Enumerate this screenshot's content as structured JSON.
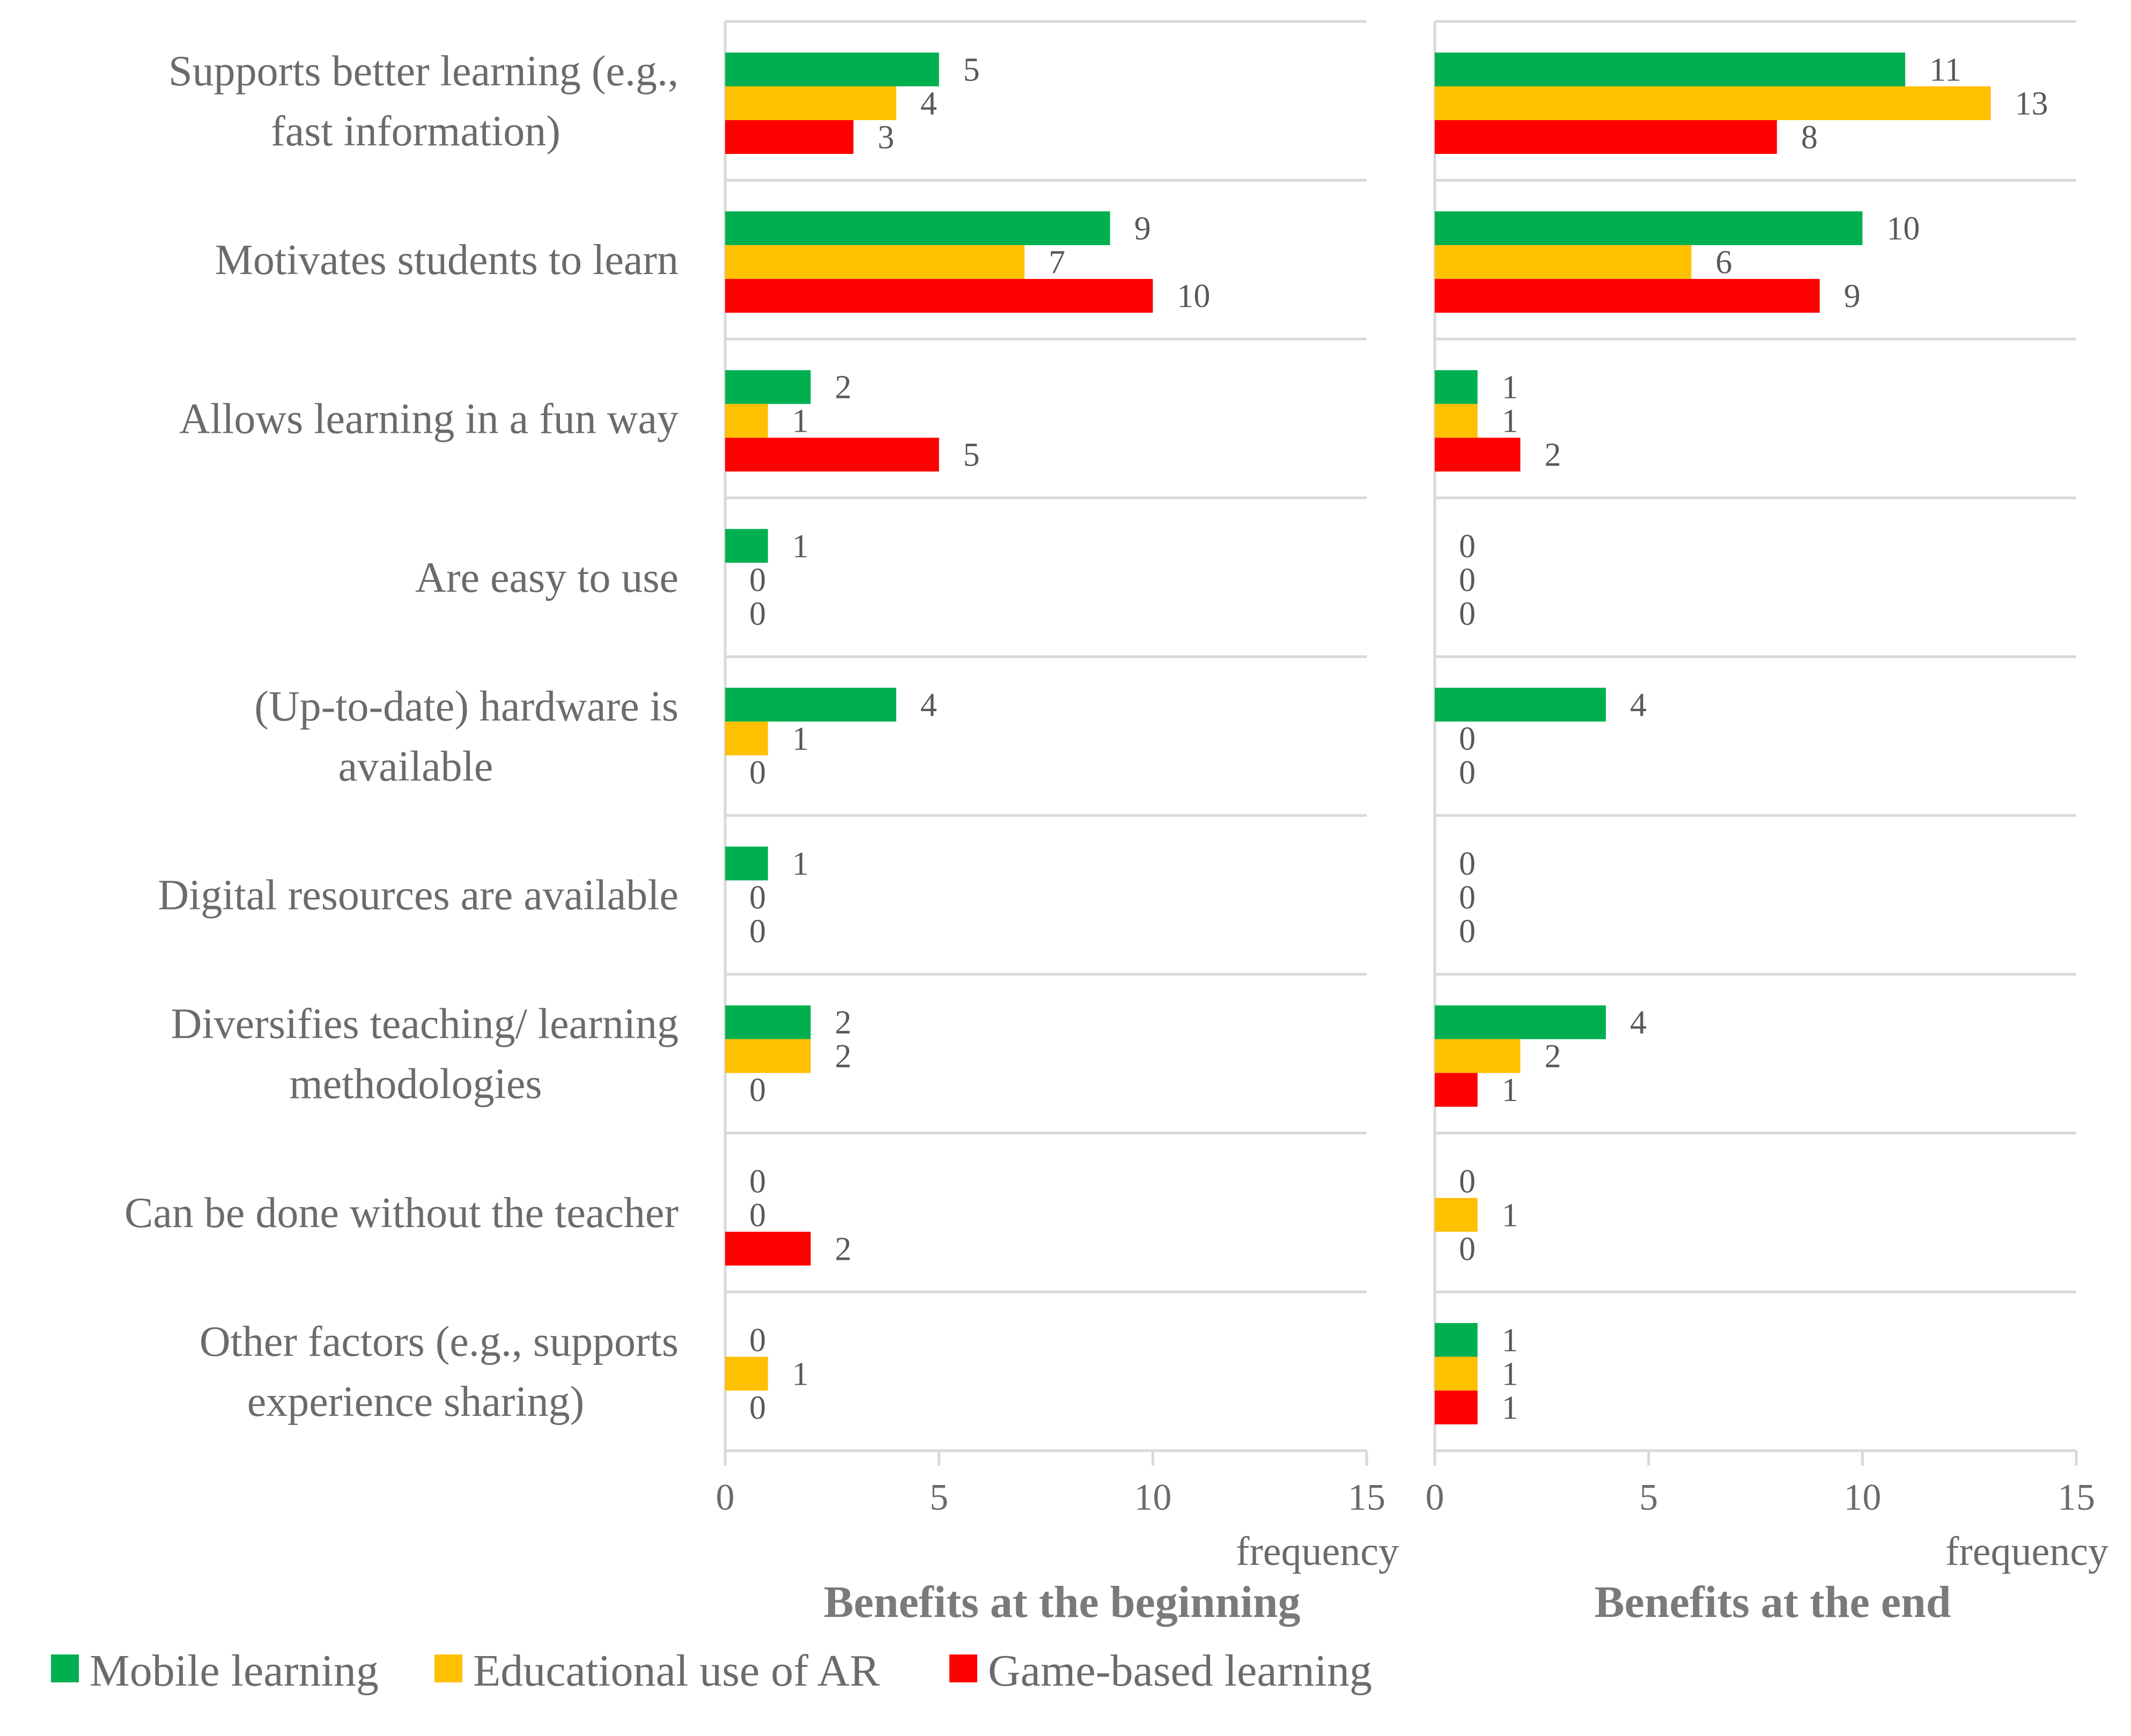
{
  "chart_data": {
    "type": "bar",
    "orientation": "horizontal",
    "categories": [
      [
        "Supports better learning (e.g.,",
        "fast information)"
      ],
      [
        "Motivates students to learn"
      ],
      [
        "Allows learning in a fun way"
      ],
      [
        "Are easy to use"
      ],
      [
        "(Up-to-date) hardware is",
        "available"
      ],
      [
        "Digital resources are available"
      ],
      [
        "Diversifies teaching/ learning",
        "methodologies"
      ],
      [
        "Can be done without the teacher"
      ],
      [
        "Other factors (e.g., supports",
        "experience sharing)"
      ]
    ],
    "legend": [
      {
        "name": "Mobile learning",
        "color": "#00b050"
      },
      {
        "name": "Educational use of AR",
        "color": "#ffc000"
      },
      {
        "name": "Game-based learning",
        "color": "#ff0000"
      }
    ],
    "xlim": [
      0,
      15
    ],
    "xticks": [
      "0",
      "5",
      "10",
      "15"
    ],
    "panels": [
      {
        "title": "Benefits at the beginning",
        "xlabel": "frequency",
        "series": [
          {
            "name": "Mobile learning",
            "values": [
              5,
              9,
              2,
              1,
              4,
              1,
              2,
              0,
              0
            ]
          },
          {
            "name": "Educational use of AR",
            "values": [
              4,
              7,
              1,
              0,
              1,
              0,
              2,
              0,
              1
            ]
          },
          {
            "name": "Game-based learning",
            "values": [
              3,
              10,
              5,
              0,
              0,
              0,
              0,
              2,
              0
            ]
          }
        ]
      },
      {
        "title": "Benefits at the end",
        "xlabel": "frequency",
        "series": [
          {
            "name": "Mobile learning",
            "values": [
              11,
              10,
              1,
              0,
              4,
              0,
              4,
              0,
              1
            ]
          },
          {
            "name": "Educational use of AR",
            "values": [
              13,
              6,
              1,
              0,
              0,
              0,
              2,
              1,
              1
            ]
          },
          {
            "name": "Game-based learning",
            "values": [
              8,
              9,
              2,
              0,
              0,
              0,
              1,
              0,
              1
            ]
          }
        ]
      }
    ]
  }
}
